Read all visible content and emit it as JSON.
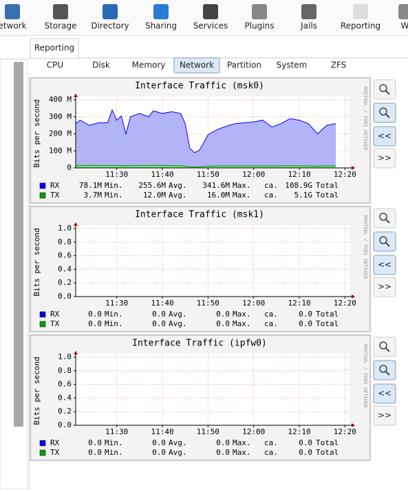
{
  "toolbar": [
    "etwork",
    "Storage",
    "Directory",
    "Sharing",
    "Services",
    "Plugins",
    "Jails",
    "Reporting",
    "Wi"
  ],
  "tab": "Reporting",
  "subtabs": [
    "CPU",
    "Disk",
    "Memory",
    "Network",
    "Partition",
    "System",
    "ZFS"
  ],
  "active_subtab": 3,
  "side_text": "RRDTOOL / TOBI OETIKER",
  "buttons": [
    "<<",
    ">>"
  ],
  "legend_labels": {
    "min": "Min.",
    "avg": "Avg.",
    "max": "Max.",
    "ca": "ca.",
    "total": "Total"
  },
  "chart_data": [
    {
      "type": "area",
      "title": "Interface Traffic (msk0)",
      "y_label": "Bits per second",
      "x": [
        "11:21",
        "11:22",
        "11:24",
        "11:26",
        "11:28",
        "11:29",
        "11:30",
        "11:31",
        "11:32",
        "11:33",
        "11:35",
        "11:37",
        "11:38",
        "11:40",
        "11:42",
        "11:44",
        "11:45",
        "11:46",
        "11:47",
        "11:48",
        "11:49",
        "11:50",
        "11:52",
        "11:54",
        "11:56",
        "11:58",
        "12:00",
        "12:02",
        "12:04",
        "12:06",
        "12:08",
        "12:10",
        "12:12",
        "12:14",
        "12:16",
        "12:18"
      ],
      "xlim": [
        "11:21",
        "12:21"
      ],
      "xticks": [
        "11:30",
        "11:40",
        "11:50",
        "12:00",
        "12:10",
        "12:20"
      ],
      "ylim": [
        0,
        400000000
      ],
      "yticks": [
        {
          "value": 0,
          "label": "0"
        },
        {
          "value": 100000000,
          "label": "100 M"
        },
        {
          "value": 200000000,
          "label": "200 M"
        },
        {
          "value": 300000000,
          "label": "300 M"
        },
        {
          "value": 400000000,
          "label": "400 M"
        }
      ],
      "grid": true,
      "series": [
        {
          "name": "RX",
          "color": "#0000ff",
          "fill": "#b3b3f7",
          "min": "78.1M",
          "avg": "255.6M",
          "max": "341.6M",
          "total": "108.9G",
          "values": [
            260000000,
            280000000,
            250000000,
            265000000,
            265000000,
            340000000,
            280000000,
            305000000,
            200000000,
            300000000,
            320000000,
            300000000,
            335000000,
            320000000,
            330000000,
            320000000,
            260000000,
            115000000,
            90000000,
            100000000,
            145000000,
            195000000,
            225000000,
            245000000,
            260000000,
            265000000,
            270000000,
            280000000,
            240000000,
            260000000,
            290000000,
            280000000,
            260000000,
            200000000,
            250000000,
            260000000
          ]
        },
        {
          "name": "TX",
          "color": "#00a000",
          "fill": "#80e080",
          "min": "3.7M",
          "avg": "12.0M",
          "max": "16.0M",
          "total": "5.1G",
          "values": [
            14000000,
            14000000,
            15000000,
            14000000,
            14000000,
            15000000,
            14000000,
            14000000,
            13000000,
            14000000,
            14000000,
            14000000,
            15000000,
            14000000,
            14000000,
            13000000,
            10000000,
            6000000,
            5000000,
            6000000,
            8000000,
            10000000,
            11000000,
            12000000,
            12000000,
            12000000,
            12000000,
            12000000,
            11000000,
            12000000,
            13000000,
            12000000,
            12000000,
            10000000,
            12000000,
            12000000
          ]
        }
      ]
    },
    {
      "type": "area",
      "title": "Interface Traffic (msk1)",
      "y_label": "Bits per second",
      "x": [],
      "xlim": [
        "11:21",
        "12:21"
      ],
      "xticks": [
        "11:30",
        "11:40",
        "11:50",
        "12:00",
        "12:10",
        "12:20"
      ],
      "ylim": [
        0,
        1
      ],
      "yticks": [
        {
          "value": 0,
          "label": "0.0"
        },
        {
          "value": 0.2,
          "label": "0.2"
        },
        {
          "value": 0.4,
          "label": "0.4"
        },
        {
          "value": 0.6,
          "label": "0.6"
        },
        {
          "value": 0.8,
          "label": "0.8"
        },
        {
          "value": 1,
          "label": "1.0"
        }
      ],
      "grid": true,
      "series": [
        {
          "name": "RX",
          "color": "#0000ff",
          "fill": "#b3b3f7",
          "min": "0.0",
          "avg": "0.0",
          "max": "0.0",
          "total": "0.0",
          "values": []
        },
        {
          "name": "TX",
          "color": "#00a000",
          "fill": "#80e080",
          "min": "0.0",
          "avg": "0.0",
          "max": "0.0",
          "total": "0.0",
          "values": []
        }
      ]
    },
    {
      "type": "area",
      "title": "Interface Traffic (ipfw0)",
      "y_label": "Bits per second",
      "x": [],
      "xlim": [
        "11:21",
        "12:21"
      ],
      "xticks": [
        "11:30",
        "11:40",
        "11:50",
        "12:00",
        "12:10",
        "12:20"
      ],
      "ylim": [
        0,
        1
      ],
      "yticks": [
        {
          "value": 0,
          "label": "0.0"
        },
        {
          "value": 0.2,
          "label": "0.2"
        },
        {
          "value": 0.4,
          "label": "0.4"
        },
        {
          "value": 0.6,
          "label": "0.6"
        },
        {
          "value": 0.8,
          "label": "0.8"
        },
        {
          "value": 1,
          "label": "1.0"
        }
      ],
      "grid": true,
      "series": [
        {
          "name": "RX",
          "color": "#0000ff",
          "fill": "#b3b3f7",
          "min": "0.0",
          "avg": "0.0",
          "max": "0.0",
          "total": "0.0",
          "values": []
        },
        {
          "name": "TX",
          "color": "#00a000",
          "fill": "#80e080",
          "min": "0.0",
          "avg": "0.0",
          "max": "0.0",
          "total": "0.0",
          "values": []
        }
      ]
    }
  ]
}
